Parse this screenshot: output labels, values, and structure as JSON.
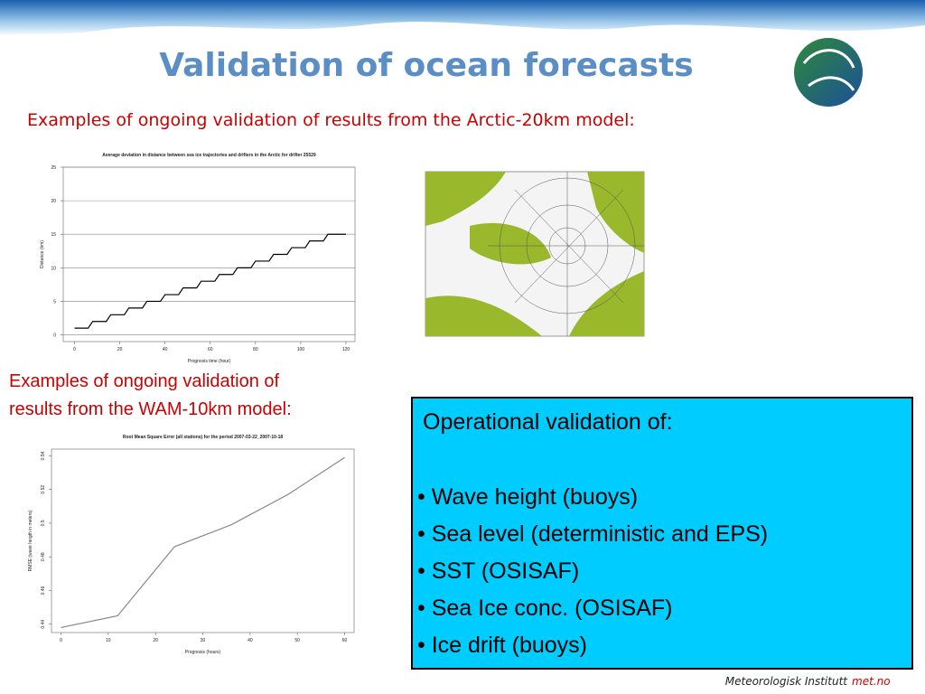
{
  "slide": {
    "title": "Validation of ocean forecasts",
    "subtitle_arctic": "Examples of ongoing validation of results from the Arctic-20km model:",
    "subtitle_wam": [
      "Examples of ongoing validation of",
      "results from the WAM-10km model:"
    ],
    "box": {
      "heading": "Operational validation of:",
      "items": [
        "• Wave height (buoys)",
        "• Sea level (deterministic and EPS)",
        "• SST (OSISAF)",
        "• Sea Ice conc. (OSISAF)",
        "• Ice drift (buoys)"
      ]
    },
    "footer": {
      "institute": "Meteorologisk Institutt",
      "site": "met.no"
    }
  },
  "chart_data": [
    {
      "type": "line",
      "title": "Average deviation in distance between sea ice trajectories and drifters in the Arctic for drifter 25529",
      "x_label": "Prognosis time (hour)",
      "y_label": "Distance (km)",
      "color": "#000000",
      "grid": true,
      "x": [
        0,
        6,
        8,
        14,
        16,
        22,
        24,
        30,
        32,
        38,
        40,
        46,
        48,
        54,
        56,
        62,
        64,
        70,
        72,
        78,
        80,
        86,
        88,
        94,
        96,
        102,
        104,
        110,
        112,
        120
      ],
      "values": [
        1,
        1,
        2,
        2,
        3,
        3,
        4,
        4,
        5,
        5,
        6,
        6,
        7,
        7,
        8,
        8,
        9,
        9,
        10,
        10,
        11,
        11,
        12,
        12,
        13,
        13,
        14,
        14,
        15,
        15
      ],
      "xlim": [
        -5,
        124
      ],
      "ylim": [
        -1,
        25
      ],
      "xticks": [
        0,
        20,
        40,
        60,
        80,
        100,
        120
      ],
      "yticks": [
        0,
        5,
        10,
        15,
        20,
        25
      ]
    },
    {
      "type": "line",
      "title": "Root Mean Square Error (all stations) for the period 2007-03-22_2007-10-18",
      "x_label": "Prognosis (hours)",
      "y_label": "RMSE (wave heigth in meters)",
      "color": "#888888",
      "grid": false,
      "x": [
        0,
        12,
        24,
        36,
        48,
        60
      ],
      "values": [
        0.438,
        0.445,
        0.486,
        0.499,
        0.517,
        0.539
      ],
      "xlim": [
        -2,
        62
      ],
      "ylim": [
        0.435,
        0.544
      ],
      "xticks": [
        0,
        10,
        20,
        30,
        40,
        50,
        60
      ],
      "yticks": [
        0.44,
        0.46,
        0.48,
        0.5,
        0.52,
        0.54
      ]
    }
  ]
}
